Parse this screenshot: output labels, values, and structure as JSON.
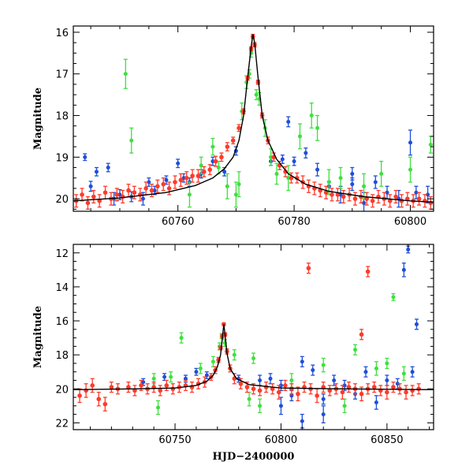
{
  "colors": {
    "blue": "#1f4fd8",
    "green": "#3ee03e",
    "red": "#ff3a2a",
    "model": "#000000"
  },
  "chart_data": [
    {
      "type": "scatter",
      "panel": "top",
      "title": "",
      "xlabel": "",
      "ylabel": "Magnitude",
      "xlim": [
        60742,
        60804
      ],
      "ylim": [
        20.3,
        15.85
      ],
      "y_inverted": true,
      "xticks": [
        60760,
        60780,
        60800
      ],
      "yticks": [
        16,
        17,
        18,
        19,
        20
      ],
      "model": {
        "name": "",
        "x": [
          60742,
          60750,
          60758,
          60763,
          60766,
          60768,
          60769.5,
          60770.5,
          60771.3,
          60772,
          60772.6,
          60772.9,
          60773.2,
          60773.8,
          60774.5,
          60775.5,
          60777,
          60779,
          60782,
          60786,
          60792,
          60800,
          60804
        ],
        "y": [
          20.05,
          19.98,
          19.85,
          19.68,
          19.5,
          19.28,
          19.0,
          18.6,
          18.0,
          17.1,
          16.35,
          16.05,
          16.25,
          17.1,
          18.0,
          18.6,
          19.05,
          19.4,
          19.65,
          19.82,
          19.95,
          20.05,
          20.08
        ]
      },
      "series": [
        {
          "name": "",
          "color": "blue",
          "x": [
            60744,
            60746,
            60748,
            60750,
            60752,
            60754,
            60756,
            60758,
            60760,
            60762,
            60764,
            60766,
            60768,
            60770,
            60776,
            60778,
            60780,
            60782,
            60784,
            60786,
            60788,
            60790,
            60792,
            60794,
            60796,
            60798,
            60801,
            60803,
            60745,
            60749,
            60755,
            60761,
            60779,
            60790,
            60800
          ],
          "y": [
            19.0,
            19.35,
            19.25,
            19.9,
            19.95,
            20.0,
            19.8,
            19.55,
            19.15,
            19.6,
            19.4,
            19.1,
            19.35,
            18.85,
            19.1,
            19.05,
            19.1,
            18.9,
            19.3,
            19.7,
            19.9,
            19.4,
            20.1,
            19.6,
            19.85,
            20.0,
            19.85,
            19.9,
            19.7,
            20.0,
            19.6,
            19.5,
            18.15,
            19.65,
            18.65
          ],
          "yerr": [
            0.08,
            0.1,
            0.1,
            0.12,
            0.12,
            0.15,
            0.1,
            0.1,
            0.1,
            0.1,
            0.1,
            0.1,
            0.1,
            0.1,
            0.1,
            0.1,
            0.1,
            0.12,
            0.15,
            0.12,
            0.2,
            0.15,
            0.25,
            0.15,
            0.15,
            0.2,
            0.15,
            0.2,
            0.12,
            0.15,
            0.1,
            0.1,
            0.12,
            0.15,
            0.3
          ]
        },
        {
          "name": "",
          "color": "green",
          "x": [
            60751,
            60752,
            60766,
            60767,
            60768.5,
            60770,
            60771,
            60771.8,
            60772.3,
            60772.6,
            60773.5,
            60774,
            60775,
            60776,
            60777,
            60779,
            60781,
            60783,
            60784,
            60786,
            60788,
            60792,
            60795,
            60800,
            60803.5,
            60764,
            60770.5,
            60762
          ],
          "y": [
            17.0,
            18.6,
            18.75,
            19.25,
            19.7,
            19.9,
            17.9,
            17.2,
            17.0,
            16.5,
            17.5,
            17.6,
            18.3,
            19.0,
            19.4,
            19.5,
            18.5,
            18.0,
            18.3,
            19.6,
            19.5,
            19.7,
            19.4,
            19.3,
            18.7,
            19.2,
            19.65,
            19.9
          ],
          "yerr": [
            0.35,
            0.3,
            0.2,
            0.15,
            0.3,
            0.3,
            0.2,
            0.15,
            0.1,
            0.1,
            0.12,
            0.15,
            0.2,
            0.2,
            0.25,
            0.3,
            0.3,
            0.3,
            0.3,
            0.3,
            0.25,
            0.3,
            0.3,
            0.3,
            0.2,
            0.2,
            0.3,
            0.3
          ]
        },
        {
          "name": "",
          "color": "red",
          "dense": true,
          "x": [
            60742.5,
            60743.5,
            60744.5,
            60745.5,
            60746.5,
            60747.5,
            60748.5,
            60749.5,
            60750.5,
            60751.5,
            60752.5,
            60753.5,
            60754.5,
            60755.5,
            60756.5,
            60757.5,
            60758.5,
            60759.5,
            60760.5,
            60761.5,
            60762.5,
            60763.5,
            60764.5,
            60765.5,
            60766.5,
            60767.5,
            60768.5,
            60769.5,
            60770.5,
            60771.3,
            60772.0,
            60772.6,
            60772.9,
            60773.2,
            60773.8,
            60774.5,
            60775.5,
            60776.5,
            60777.5,
            60778.5,
            60779.5,
            60780.5,
            60781.5,
            60782.5,
            60783.5,
            60784.5,
            60785.5,
            60786.5,
            60787.5,
            60788.5,
            60789.5,
            60790.5,
            60791.5,
            60792.5,
            60793.5,
            60794.5,
            60795.5,
            60796.5,
            60797.5,
            60798.5,
            60799.5,
            60800.5,
            60801.5,
            60802.5,
            60803.5
          ],
          "y": [
            20.05,
            19.9,
            20.1,
            19.95,
            20.05,
            19.85,
            20.0,
            19.9,
            19.95,
            19.8,
            19.85,
            19.9,
            19.75,
            19.8,
            19.7,
            19.65,
            19.75,
            19.6,
            19.55,
            19.5,
            19.45,
            19.45,
            19.35,
            19.3,
            19.1,
            19.0,
            18.75,
            18.6,
            18.3,
            17.9,
            17.1,
            16.4,
            16.1,
            16.3,
            17.2,
            18.0,
            18.6,
            19.0,
            19.2,
            19.35,
            19.5,
            19.5,
            19.6,
            19.7,
            19.75,
            19.8,
            19.85,
            19.9,
            19.9,
            19.95,
            19.9,
            20.0,
            19.95,
            20.0,
            20.05,
            19.95,
            20.0,
            20.05,
            19.95,
            20.05,
            20.0,
            20.05,
            20.0,
            20.05,
            20.1
          ],
          "yerr": [
            0.15,
            0.15,
            0.15,
            0.15,
            0.15,
            0.15,
            0.15,
            0.15,
            0.15,
            0.15,
            0.15,
            0.15,
            0.15,
            0.15,
            0.15,
            0.15,
            0.15,
            0.15,
            0.15,
            0.15,
            0.15,
            0.15,
            0.12,
            0.12,
            0.12,
            0.1,
            0.1,
            0.08,
            0.08,
            0.06,
            0.05,
            0.05,
            0.05,
            0.05,
            0.05,
            0.06,
            0.08,
            0.1,
            0.1,
            0.12,
            0.12,
            0.12,
            0.15,
            0.15,
            0.15,
            0.15,
            0.15,
            0.15,
            0.15,
            0.15,
            0.15,
            0.15,
            0.15,
            0.15,
            0.15,
            0.15,
            0.15,
            0.15,
            0.15,
            0.15,
            0.15,
            0.15,
            0.15,
            0.15,
            0.15
          ]
        }
      ]
    },
    {
      "type": "scatter",
      "panel": "bottom",
      "title": "",
      "xlabel": "HJD−2400000",
      "ylabel": "Magnitude",
      "xlim": [
        60702,
        60872
      ],
      "ylim": [
        22.4,
        11.5
      ],
      "y_inverted": true,
      "xticks": [
        60750,
        60800,
        60850
      ],
      "yticks": [
        12,
        14,
        16,
        18,
        20,
        22
      ],
      "model": {
        "name": "",
        "x": [
          60702,
          60730,
          60750,
          60760,
          60765,
          60768,
          60770,
          60771.5,
          60772.5,
          60773,
          60773.5,
          60774.5,
          60776,
          60779,
          60785,
          60800,
          60830,
          60872
        ],
        "y": [
          20.05,
          20.0,
          19.95,
          19.8,
          19.55,
          19.2,
          18.7,
          18.0,
          16.8,
          16.2,
          16.7,
          17.9,
          18.8,
          19.4,
          19.75,
          19.95,
          20.0,
          20.05
        ]
      },
      "series": [
        {
          "name": "",
          "color": "blue",
          "x": [
            60735,
            60745,
            60755,
            60760,
            60765,
            60780,
            60790,
            60795,
            60800,
            60805,
            60810,
            60815,
            60820,
            60825,
            60830,
            60835,
            60840,
            60845,
            60850,
            60855,
            60858,
            60860,
            60862,
            60864,
            60800,
            60820,
            60810
          ],
          "y": [
            19.6,
            19.3,
            19.4,
            19.0,
            19.2,
            19.4,
            19.5,
            19.4,
            19.8,
            20.4,
            18.4,
            18.9,
            20.6,
            19.5,
            19.8,
            20.3,
            19.0,
            20.8,
            19.5,
            19.7,
            13.0,
            11.8,
            19.0,
            16.2,
            21.0,
            21.5,
            21.9
          ],
          "yerr": [
            0.2,
            0.2,
            0.2,
            0.2,
            0.2,
            0.2,
            0.3,
            0.3,
            0.3,
            0.3,
            0.3,
            0.3,
            0.3,
            0.3,
            0.3,
            0.3,
            0.3,
            0.4,
            0.3,
            0.3,
            0.4,
            0.2,
            0.3,
            0.3,
            0.5,
            0.5,
            0.4
          ]
        },
        {
          "name": "",
          "color": "green",
          "x": [
            60740,
            60748,
            60753,
            60762,
            60768,
            60771,
            60772,
            60773.5,
            60778,
            60785,
            60790,
            60805,
            60820,
            60830,
            60835,
            60845,
            60850,
            60853,
            60858,
            60742,
            60787
          ],
          "y": [
            19.4,
            19.3,
            17.0,
            18.8,
            18.4,
            17.5,
            16.9,
            17.3,
            18.0,
            20.6,
            21.0,
            19.5,
            18.6,
            21.0,
            17.7,
            18.8,
            18.5,
            14.6,
            19.1,
            21.1,
            18.2
          ],
          "yerr": [
            0.3,
            0.3,
            0.3,
            0.3,
            0.3,
            0.2,
            0.15,
            0.2,
            0.3,
            0.4,
            0.4,
            0.4,
            0.4,
            0.4,
            0.3,
            0.4,
            0.3,
            0.2,
            0.4,
            0.4,
            0.3
          ]
        },
        {
          "name": "",
          "color": "red",
          "dense": true,
          "x": [
            60705,
            60708,
            60711,
            60714,
            60717,
            60720,
            60723,
            60728,
            60731,
            60734,
            60737,
            60740,
            60743,
            60746,
            60749,
            60752,
            60755,
            60758,
            60761,
            60764,
            60767,
            60769,
            60770.5,
            60771.5,
            60772.3,
            60773,
            60773.6,
            60774.5,
            60776,
            60778,
            60781,
            60784,
            60787,
            60790,
            60793,
            60796,
            60799,
            60802,
            60805,
            60808,
            60811,
            60814,
            60817,
            60820,
            60823,
            60826,
            60829,
            60832,
            60835,
            60838,
            60841,
            60844,
            60847,
            60850,
            60853,
            60856,
            60859,
            60862,
            60865,
            60813,
            60841,
            60838
          ],
          "y": [
            20.4,
            20.1,
            19.8,
            20.6,
            20.9,
            19.9,
            20.0,
            19.9,
            20.1,
            19.8,
            20.0,
            19.9,
            20.1,
            19.8,
            20.0,
            19.9,
            19.8,
            19.9,
            19.7,
            19.6,
            19.3,
            18.9,
            18.3,
            17.6,
            16.9,
            16.2,
            16.8,
            17.8,
            18.8,
            19.4,
            19.7,
            19.9,
            20.0,
            20.1,
            19.9,
            20.0,
            20.2,
            19.8,
            20.0,
            20.3,
            19.9,
            20.0,
            20.4,
            19.9,
            20.1,
            20.0,
            20.2,
            19.9,
            20.0,
            20.3,
            20.0,
            19.9,
            20.1,
            20.2,
            19.9,
            20.0,
            20.2,
            20.1,
            20.0,
            12.9,
            13.1,
            16.8
          ],
          "yerr": [
            0.4,
            0.4,
            0.4,
            0.4,
            0.4,
            0.3,
            0.3,
            0.3,
            0.3,
            0.3,
            0.3,
            0.3,
            0.3,
            0.3,
            0.3,
            0.3,
            0.3,
            0.3,
            0.3,
            0.3,
            0.2,
            0.2,
            0.15,
            0.1,
            0.1,
            0.08,
            0.1,
            0.15,
            0.2,
            0.3,
            0.3,
            0.3,
            0.3,
            0.3,
            0.3,
            0.3,
            0.4,
            0.3,
            0.3,
            0.4,
            0.3,
            0.3,
            0.4,
            0.3,
            0.3,
            0.3,
            0.4,
            0.3,
            0.3,
            0.4,
            0.3,
            0.3,
            0.3,
            0.4,
            0.3,
            0.3,
            0.4,
            0.3,
            0.3,
            0.3,
            0.3,
            0.3
          ]
        }
      ]
    }
  ]
}
